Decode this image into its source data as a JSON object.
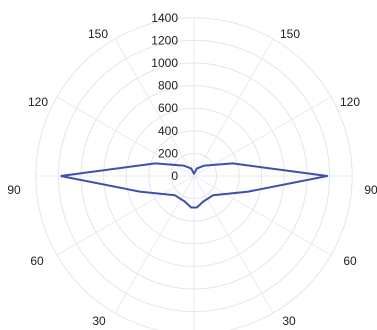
{
  "chart_data": {
    "type": "line",
    "coordinate_system": "polar",
    "title": "",
    "radial_axis": {
      "range": [
        0,
        1400
      ],
      "ticks": [
        "0",
        "200",
        "400",
        "600",
        "800",
        "1000",
        "1200",
        "1400"
      ]
    },
    "angle_labels": {
      "upper_left": "150",
      "upper_right": "150",
      "left_upper": "120",
      "right_upper": "120",
      "left_middle": "90",
      "right_middle": "90",
      "left_lower": "60",
      "right_lower": "60",
      "bottom_left": "30",
      "bottom_right": "30"
    },
    "grid": true,
    "series": [
      {
        "color": "#3f4fb0",
        "points": [
          {
            "angle_deg": 90,
            "r": 1180
          },
          {
            "angle_deg": 108,
            "r": 360
          },
          {
            "angle_deg": 135,
            "r": 130
          },
          {
            "angle_deg": 160,
            "r": 70
          },
          {
            "angle_deg": 180,
            "r": 20
          },
          {
            "angle_deg": 200,
            "r": 70
          },
          {
            "angle_deg": 225,
            "r": 130
          },
          {
            "angle_deg": 252,
            "r": 360
          },
          {
            "angle_deg": 270,
            "r": 1180
          },
          {
            "angle_deg": 286,
            "r": 500
          },
          {
            "angle_deg": 315,
            "r": 240
          },
          {
            "angle_deg": 340,
            "r": 240
          },
          {
            "angle_deg": 355,
            "r": 280
          },
          {
            "angle_deg": 5,
            "r": 280
          },
          {
            "angle_deg": 20,
            "r": 240
          },
          {
            "angle_deg": 45,
            "r": 240
          },
          {
            "angle_deg": 74,
            "r": 500
          },
          {
            "angle_deg": 90,
            "r": 1180
          }
        ]
      }
    ]
  }
}
